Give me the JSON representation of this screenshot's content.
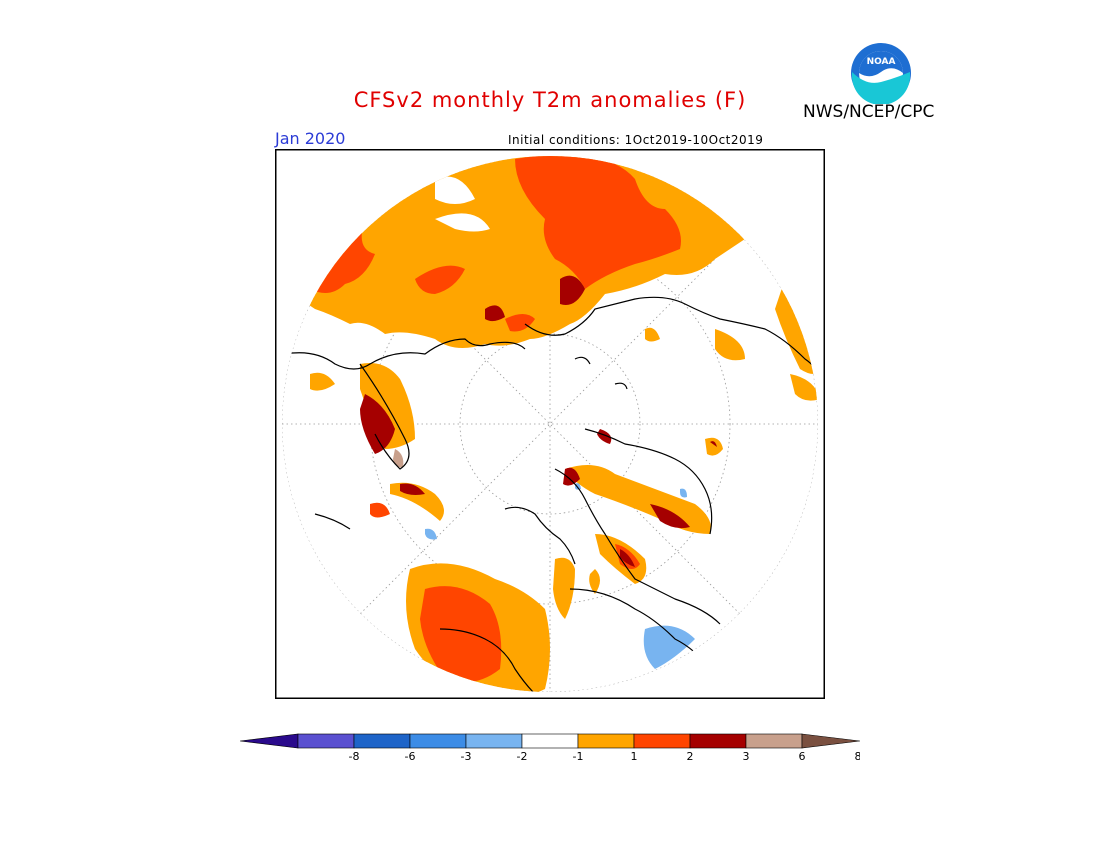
{
  "header": {
    "title": "CFSv2 monthly T2m anomalies (F)",
    "agency": "NWS/NCEP/CPC",
    "logo_text": "NOAA",
    "month": "Jan 2020",
    "initial_conditions": "Initial conditions: 1Oct2019-10Oct2019"
  },
  "colors": {
    "title": "#e00000",
    "month": "#2b3bd6",
    "anom_1_2": "#ffa500",
    "anom_2_3": "#ff4500",
    "anom_3_6": "#a50000",
    "anom_6_8": "#c8a08c",
    "anom_neg1_neg2": "#78b4f0",
    "neutral": "#ffffff"
  },
  "colorbar": {
    "colors": [
      "#2a0a8c",
      "#5a50d0",
      "#1e64c8",
      "#3c8ce6",
      "#78b4f0",
      "#ffffff",
      "#ffa500",
      "#ff4500",
      "#a50000",
      "#c8a08c",
      "#7a5040"
    ],
    "labels": [
      "-8",
      "-6",
      "-3",
      "-2",
      "-1",
      "1",
      "2",
      "3",
      "6",
      "8"
    ]
  }
}
